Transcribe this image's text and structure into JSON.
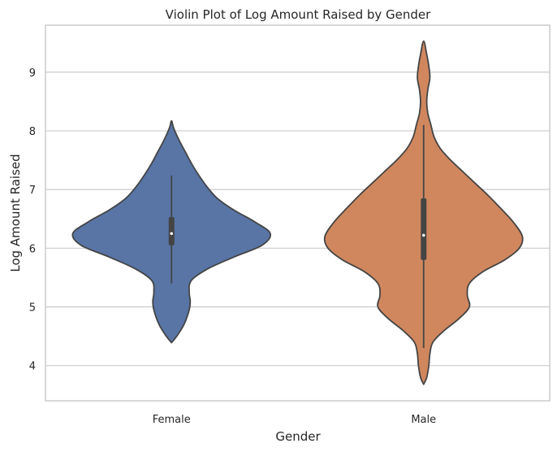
{
  "chart_data": {
    "type": "violin",
    "title": "Violin Plot of Log Amount Raised by Gender",
    "xlabel": "Gender",
    "ylabel": "Log Amount Raised",
    "categories": [
      "Female",
      "Male"
    ],
    "ylim": [
      3.4,
      9.8
    ],
    "yticks": [
      "4",
      "5",
      "6",
      "7",
      "8",
      "9"
    ],
    "grid": true,
    "colors": {
      "Female": "#5875a6",
      "Male": "#d0875e",
      "outline": "#444444",
      "grid": "#cccccc"
    },
    "series": [
      {
        "category": "Female",
        "box": {
          "q1": 6.05,
          "median": 6.25,
          "q3": 6.53,
          "whisker_low": 5.4,
          "whisker_high": 7.24
        },
        "density_profile": [
          [
            4.39,
            0.0
          ],
          [
            4.5,
            0.05
          ],
          [
            4.7,
            0.12
          ],
          [
            4.95,
            0.17
          ],
          [
            5.1,
            0.18
          ],
          [
            5.25,
            0.17
          ],
          [
            5.45,
            0.19
          ],
          [
            5.65,
            0.35
          ],
          [
            5.85,
            0.6
          ],
          [
            6.05,
            0.87
          ],
          [
            6.25,
            0.95
          ],
          [
            6.45,
            0.8
          ],
          [
            6.65,
            0.6
          ],
          [
            6.85,
            0.44
          ],
          [
            7.05,
            0.34
          ],
          [
            7.25,
            0.26
          ],
          [
            7.45,
            0.19
          ],
          [
            7.65,
            0.13
          ],
          [
            7.85,
            0.07
          ],
          [
            8.05,
            0.02
          ],
          [
            8.17,
            0.0
          ]
        ]
      },
      {
        "category": "Male",
        "box": {
          "q1": 5.8,
          "median": 6.22,
          "q3": 6.85,
          "whisker_low": 4.3,
          "whisker_high": 8.1
        },
        "density_profile": [
          [
            3.68,
            0.0
          ],
          [
            3.8,
            0.03
          ],
          [
            4.0,
            0.05
          ],
          [
            4.2,
            0.06
          ],
          [
            4.4,
            0.09
          ],
          [
            4.6,
            0.2
          ],
          [
            4.8,
            0.34
          ],
          [
            5.0,
            0.44
          ],
          [
            5.2,
            0.42
          ],
          [
            5.4,
            0.44
          ],
          [
            5.6,
            0.57
          ],
          [
            5.8,
            0.78
          ],
          [
            6.0,
            0.92
          ],
          [
            6.2,
            0.95
          ],
          [
            6.45,
            0.86
          ],
          [
            6.7,
            0.73
          ],
          [
            6.9,
            0.62
          ],
          [
            7.1,
            0.5
          ],
          [
            7.3,
            0.38
          ],
          [
            7.5,
            0.26
          ],
          [
            7.7,
            0.16
          ],
          [
            7.9,
            0.1
          ],
          [
            8.1,
            0.07
          ],
          [
            8.3,
            0.04
          ],
          [
            8.5,
            0.03
          ],
          [
            8.7,
            0.04
          ],
          [
            8.9,
            0.06
          ],
          [
            9.1,
            0.05
          ],
          [
            9.3,
            0.03
          ],
          [
            9.53,
            0.0
          ]
        ]
      }
    ]
  }
}
